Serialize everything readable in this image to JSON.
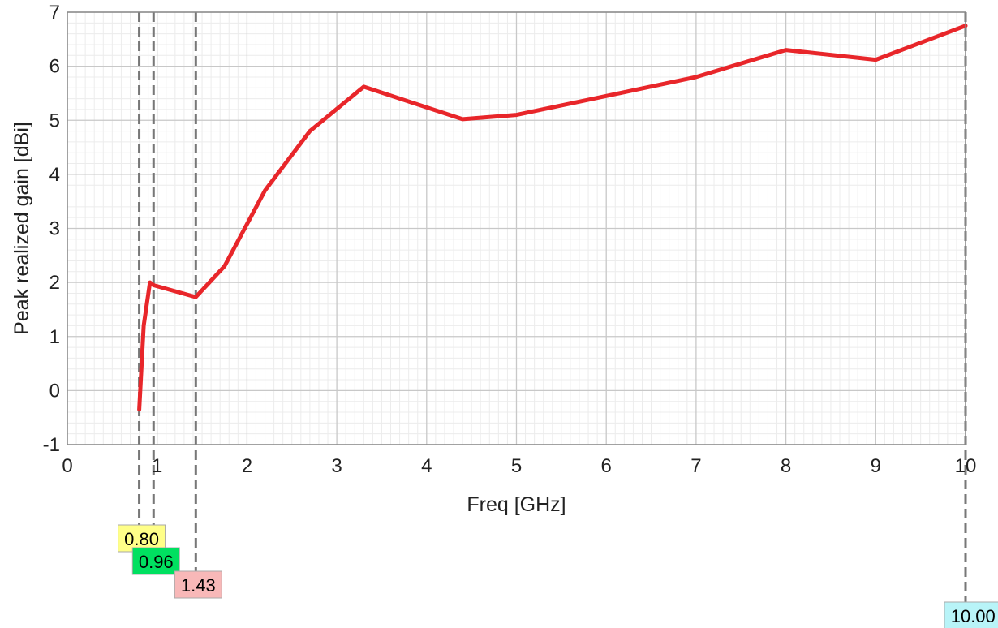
{
  "chart_data": {
    "type": "line",
    "title": "",
    "xlabel": "Freq [GHz]",
    "ylabel": "Peak realized gain [dBi]",
    "xlim": [
      0,
      10
    ],
    "ylim": [
      -1,
      7
    ],
    "x_ticks": [
      "0",
      "1",
      "2",
      "3",
      "4",
      "5",
      "6",
      "7",
      "8",
      "9",
      "10"
    ],
    "y_ticks": [
      "-1",
      "0",
      "1",
      "2",
      "3",
      "4",
      "5",
      "6",
      "7"
    ],
    "grid": true,
    "series": [
      {
        "color": "#e8262a",
        "x": [
          0.8,
          0.85,
          0.92,
          0.96,
          1.43,
          1.75,
          2.2,
          2.7,
          3.3,
          4.4,
          5.0,
          6.0,
          7.0,
          8.0,
          9.0,
          10.0
        ],
        "y": [
          -0.35,
          1.2,
          2.0,
          1.95,
          1.73,
          2.3,
          3.7,
          4.8,
          5.62,
          5.02,
          5.1,
          5.45,
          5.8,
          6.3,
          6.12,
          6.75
        ]
      }
    ],
    "markers": [
      {
        "x": 0.8,
        "label": "0.80",
        "color": "#ffff88"
      },
      {
        "x": 0.96,
        "label": "0.96",
        "color": "#00e060"
      },
      {
        "x": 1.43,
        "label": "1.43",
        "color": "#f8b8b8"
      },
      {
        "x": 10.0,
        "label": "10.00",
        "color": "#b8f4f8"
      }
    ]
  }
}
